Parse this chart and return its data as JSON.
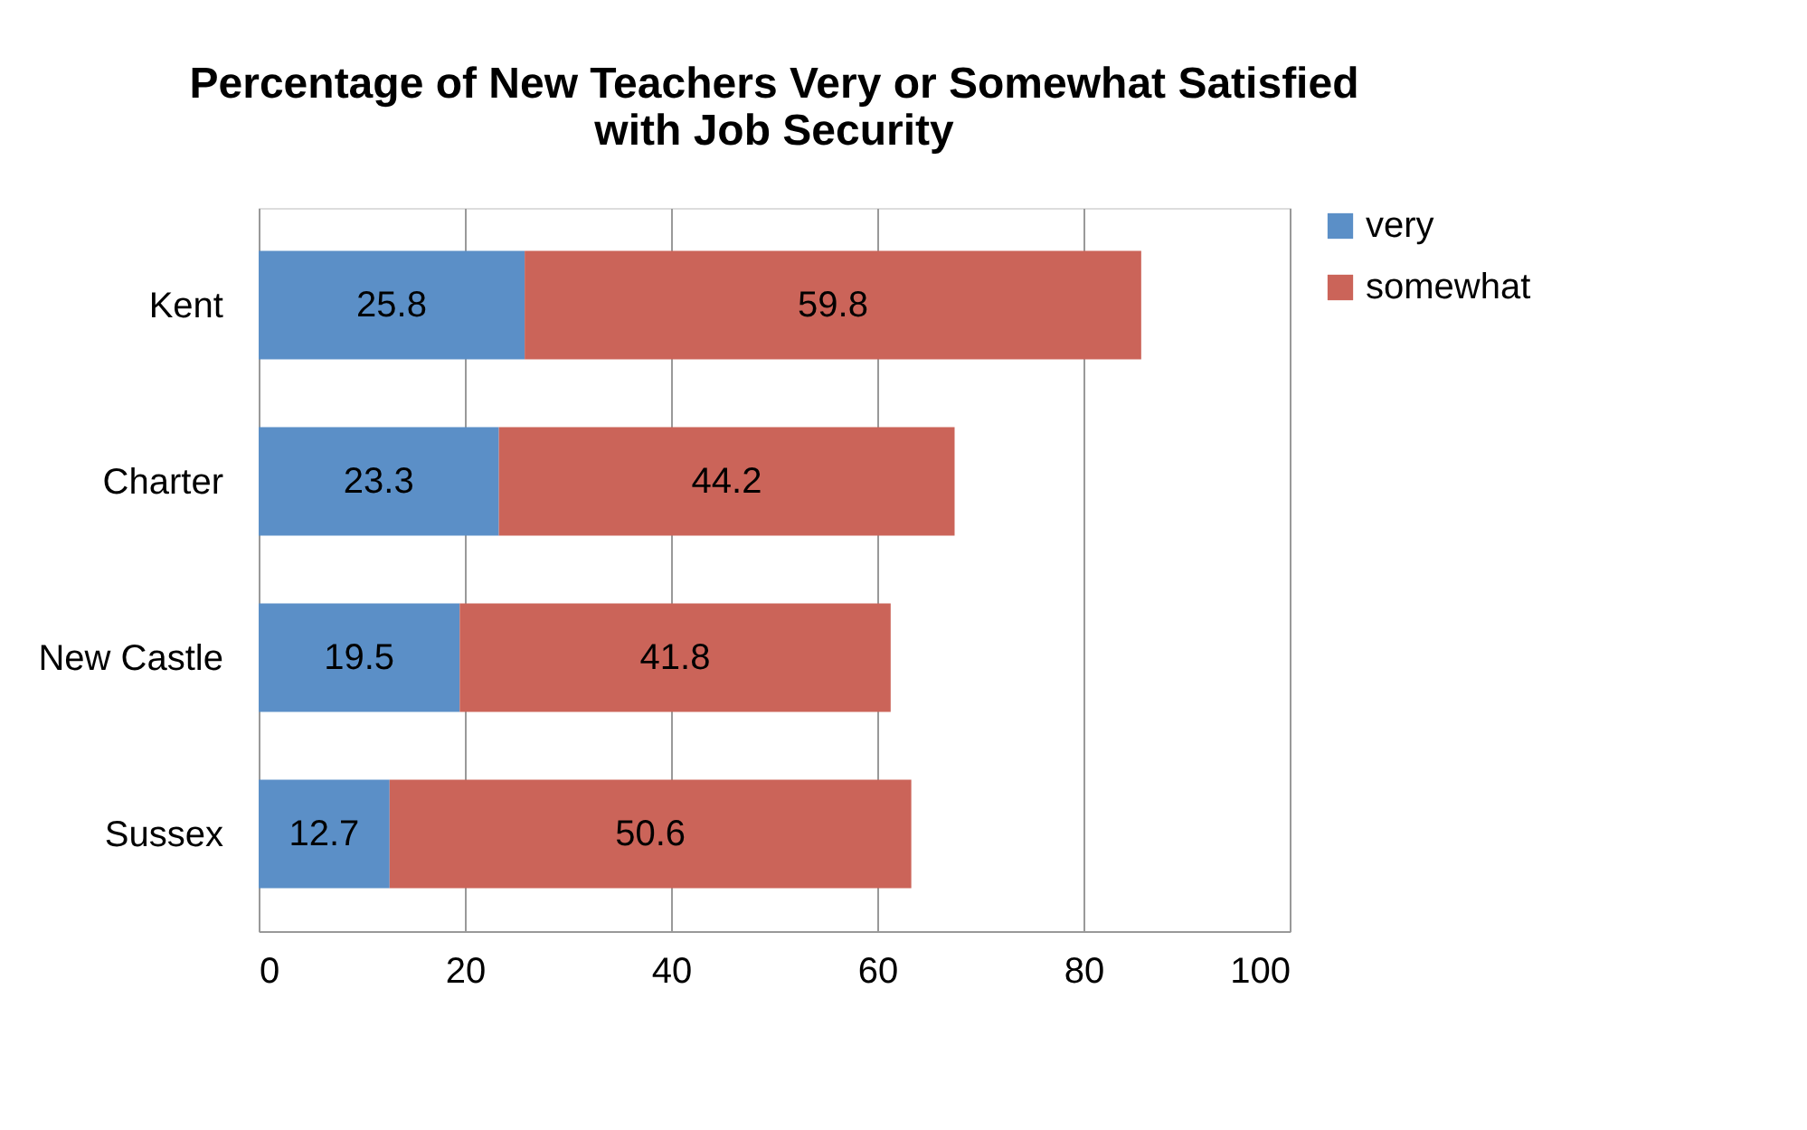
{
  "chart_data": {
    "type": "bar",
    "orientation": "horizontal",
    "stacked": true,
    "title": "Percentage of New Teachers Very or Somewhat Satisfied with Job Security",
    "categories": [
      "Kent",
      "Charter",
      "New Castle",
      "Sussex"
    ],
    "series": [
      {
        "name": "very",
        "color": "#5b8fc7",
        "values": [
          25.8,
          23.3,
          19.5,
          12.7
        ]
      },
      {
        "name": "somewhat",
        "color": "#cb6459",
        "values": [
          59.8,
          44.2,
          41.8,
          50.6
        ]
      }
    ],
    "xlim": [
      0,
      100
    ],
    "xticks": [
      0,
      20,
      40,
      60,
      80,
      100
    ],
    "grid": "x",
    "legend": "right",
    "data_labels": true
  }
}
